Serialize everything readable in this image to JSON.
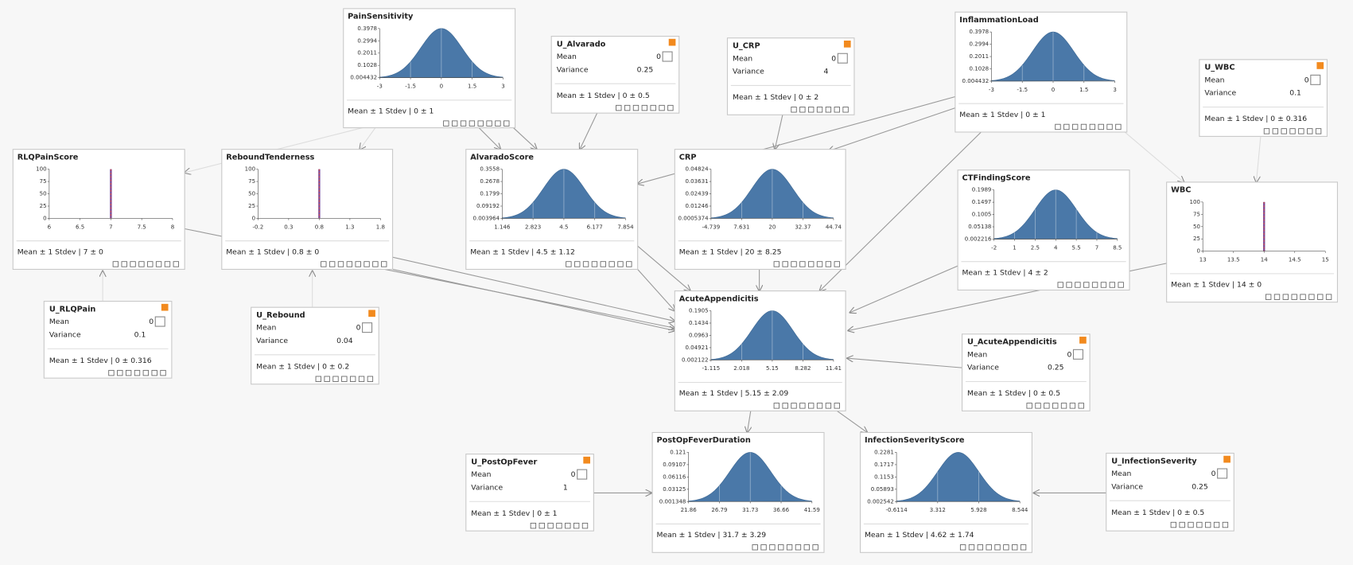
{
  "nodes": [
    {
      "title": "PainSensitivity",
      "kind": "dist",
      "yticks": [
        0.3978,
        0.2994,
        0.2011,
        0.1028,
        0.004432
      ],
      "xticks": [
        -3,
        -1.5,
        0,
        1.5,
        3
      ],
      "summary": "Mean ± 1 Stdev | 0 ± 1"
    },
    {
      "title": "U_Alvarado",
      "kind": "noise",
      "mean_label": "Mean",
      "mean": 0,
      "variance_label": "Variance",
      "variance": 0.25,
      "summary": "Mean ± 1 Stdev | 0 ± 0.5"
    },
    {
      "title": "U_CRP",
      "kind": "noise",
      "mean_label": "Mean",
      "mean": 0,
      "variance_label": "Variance",
      "variance": 4,
      "summary": "Mean ± 1 Stdev | 0 ± 2"
    },
    {
      "title": "InflammationLoad",
      "kind": "dist",
      "yticks": [
        0.3978,
        0.2994,
        0.2011,
        0.1028,
        0.004432
      ],
      "xticks": [
        -3,
        -1.5,
        0,
        1.5,
        3
      ],
      "summary": "Mean ± 1 Stdev | 0 ± 1"
    },
    {
      "title": "U_WBC",
      "kind": "noise",
      "mean_label": "Mean",
      "mean": 0,
      "variance_label": "Variance",
      "variance": 0.1,
      "summary": "Mean ± 1 Stdev | 0 ± 0.316"
    },
    {
      "title": "RLQPainScore",
      "kind": "spike",
      "yticks": [
        100,
        75,
        50,
        25,
        0
      ],
      "xticks": [
        6,
        6.5,
        7,
        7.5,
        8
      ],
      "summary": "Mean ± 1 Stdev | 7 ± 0"
    },
    {
      "title": "ReboundTenderness",
      "kind": "spike",
      "yticks": [
        100,
        75,
        50,
        25,
        0
      ],
      "xticks": [
        -0.2,
        0.3,
        0.8,
        1.3,
        1.8
      ],
      "summary": "Mean ± 1 Stdev | 0.8 ± 0"
    },
    {
      "title": "AlvaradoScore",
      "kind": "dist",
      "yticks": [
        0.3558,
        0.2678,
        0.1799,
        0.09192,
        0.003964
      ],
      "xticks": [
        1.146,
        2.823,
        4.5,
        6.177,
        7.854
      ],
      "summary": "Mean ± 1 Stdev | 4.5 ± 1.12"
    },
    {
      "title": "CRP",
      "kind": "dist",
      "yticks": [
        0.04824,
        0.03631,
        0.02439,
        0.01246,
        0.0005374
      ],
      "xticks": [
        -4.739,
        7.631,
        20,
        32.37,
        44.74
      ],
      "summary": "Mean ± 1 Stdev | 20 ± 8.25"
    },
    {
      "title": "CTFindingScore",
      "kind": "dist",
      "yticks": [
        0.1989,
        0.1497,
        0.1005,
        0.05138,
        0.002216
      ],
      "xticks": [
        -2,
        1,
        2.5,
        4,
        5.5,
        7,
        8.5
      ],
      "summary": "Mean ± 1 Stdev | 4 ± 2"
    },
    {
      "title": "WBC",
      "kind": "spike",
      "yticks": [
        100,
        75,
        50,
        25,
        0
      ],
      "xticks": [
        13,
        13.5,
        14,
        14.5,
        15
      ],
      "summary": "Mean ± 1 Stdev | 14 ± 0"
    },
    {
      "title": "U_RLQPain",
      "kind": "noise",
      "mean_label": "Mean",
      "mean": 0,
      "variance_label": "Variance",
      "variance": 0.1,
      "summary": "Mean ± 1 Stdev | 0 ± 0.316"
    },
    {
      "title": "U_Rebound",
      "kind": "noise",
      "mean_label": "Mean",
      "mean": 0,
      "variance_label": "Variance",
      "variance": 0.04,
      "summary": "Mean ± 1 Stdev | 0 ± 0.2"
    },
    {
      "title": "AcuteAppendicitis",
      "kind": "dist",
      "yticks": [
        0.1905,
        0.1434,
        0.0963,
        0.04921,
        0.002122
      ],
      "xticks": [
        -1.115,
        2.018,
        5.15,
        8.282,
        11.41
      ],
      "summary": "Mean ± 1 Stdev | 5.15 ± 2.09"
    },
    {
      "title": "U_AcuteAppendicitis",
      "kind": "noise",
      "mean_label": "Mean",
      "mean": 0,
      "variance_label": "Variance",
      "variance": 0.25,
      "summary": "Mean ± 1 Stdev | 0 ± 0.5"
    },
    {
      "title": "U_PostOpFever",
      "kind": "noise",
      "mean_label": "Mean",
      "mean": 0,
      "variance_label": "Variance",
      "variance": 1,
      "summary": "Mean ± 1 Stdev | 0 ± 1"
    },
    {
      "title": "PostOpFeverDuration",
      "kind": "dist",
      "yticks": [
        0.121,
        0.09107,
        0.06116,
        0.03125,
        0.001348
      ],
      "xticks": [
        21.86,
        26.79,
        31.73,
        36.66,
        41.59
      ],
      "summary": "Mean ± 1 Stdev | 31.7 ± 3.29"
    },
    {
      "title": "InfectionSeverityScore",
      "kind": "dist",
      "yticks": [
        0.2281,
        0.1717,
        0.1153,
        0.05893,
        0.002542
      ],
      "xticks": [
        -0.6114,
        3.312,
        5.928,
        8.544
      ],
      "summary": "Mean ± 1 Stdev | 4.62 ± 1.74"
    },
    {
      "title": "U_InfectionSeverity",
      "kind": "noise",
      "mean_label": "Mean",
      "mean": 0,
      "variance_label": "Variance",
      "variance": 0.25,
      "summary": "Mean ± 1 Stdev | 0 ± 0.5"
    }
  ]
}
